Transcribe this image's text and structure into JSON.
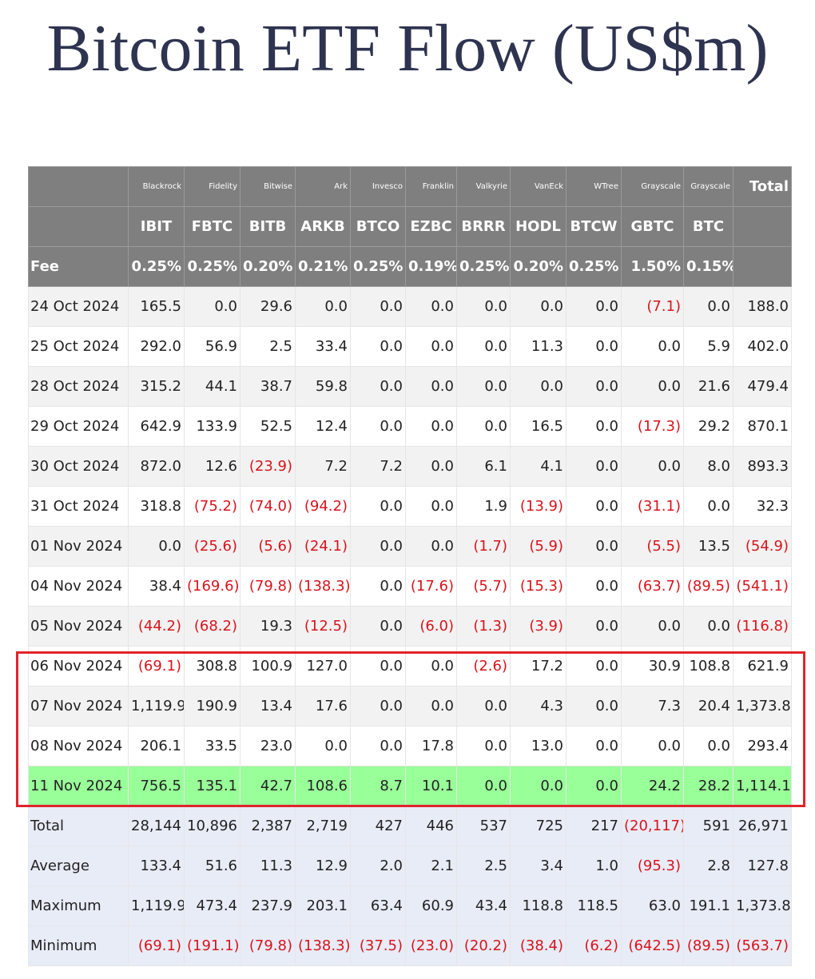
{
  "title": "Bitcoin ETF Flow (US$m)",
  "table": {
    "issuers": [
      "Blackrock",
      "Fidelity",
      "Bitwise",
      "Ark",
      "Invesco",
      "Franklin",
      "Valkyrie",
      "VanEck",
      "WTree",
      "Grayscale",
      "Grayscale"
    ],
    "total_header": "Total",
    "tickers": [
      "IBIT",
      "FBTC",
      "BITB",
      "ARKB",
      "BTCO",
      "EZBC",
      "BRRR",
      "HODL",
      "BTCW",
      "GBTC",
      "BTC"
    ],
    "fee_label": "Fee",
    "fees": [
      "0.25%",
      "0.25%",
      "0.20%",
      "0.21%",
      "0.25%",
      "0.19%",
      "0.25%",
      "0.20%",
      "0.25%",
      "1.50%",
      "0.15%"
    ],
    "rows": [
      [
        "24 Oct 2024",
        "165.5",
        "0.0",
        "29.6",
        "0.0",
        "0.0",
        "0.0",
        "0.0",
        "0.0",
        "0.0",
        "(7.1)",
        "0.0",
        "188.0"
      ],
      [
        "25 Oct 2024",
        "292.0",
        "56.9",
        "2.5",
        "33.4",
        "0.0",
        "0.0",
        "0.0",
        "11.3",
        "0.0",
        "0.0",
        "5.9",
        "402.0"
      ],
      [
        "28 Oct 2024",
        "315.2",
        "44.1",
        "38.7",
        "59.8",
        "0.0",
        "0.0",
        "0.0",
        "0.0",
        "0.0",
        "0.0",
        "21.6",
        "479.4"
      ],
      [
        "29 Oct 2024",
        "642.9",
        "133.9",
        "52.5",
        "12.4",
        "0.0",
        "0.0",
        "0.0",
        "16.5",
        "0.0",
        "(17.3)",
        "29.2",
        "870.1"
      ],
      [
        "30 Oct 2024",
        "872.0",
        "12.6",
        "(23.9)",
        "7.2",
        "7.2",
        "0.0",
        "6.1",
        "4.1",
        "0.0",
        "0.0",
        "8.0",
        "893.3"
      ],
      [
        "31 Oct 2024",
        "318.8",
        "(75.2)",
        "(74.0)",
        "(94.2)",
        "0.0",
        "0.0",
        "1.9",
        "(13.9)",
        "0.0",
        "(31.1)",
        "0.0",
        "32.3"
      ],
      [
        "01 Nov 2024",
        "0.0",
        "(25.6)",
        "(5.6)",
        "(24.1)",
        "0.0",
        "0.0",
        "(1.7)",
        "(5.9)",
        "0.0",
        "(5.5)",
        "13.5",
        "(54.9)"
      ],
      [
        "04 Nov 2024",
        "38.4",
        "(169.6)",
        "(79.8)",
        "(138.3)",
        "0.0",
        "(17.6)",
        "(5.7)",
        "(15.3)",
        "0.0",
        "(63.7)",
        "(89.5)",
        "(541.1)"
      ],
      [
        "05 Nov 2024",
        "(44.2)",
        "(68.2)",
        "19.3",
        "(12.5)",
        "0.0",
        "(6.0)",
        "(1.3)",
        "(3.9)",
        "0.0",
        "0.0",
        "0.0",
        "(116.8)"
      ],
      [
        "06 Nov 2024",
        "(69.1)",
        "308.8",
        "100.9",
        "127.0",
        "0.0",
        "0.0",
        "(2.6)",
        "17.2",
        "0.0",
        "30.9",
        "108.8",
        "621.9"
      ],
      [
        "07 Nov 2024",
        "1,119.9",
        "190.9",
        "13.4",
        "17.6",
        "0.0",
        "0.0",
        "0.0",
        "4.3",
        "0.0",
        "7.3",
        "20.4",
        "1,373.8"
      ],
      [
        "08 Nov 2024",
        "206.1",
        "33.5",
        "23.0",
        "0.0",
        "0.0",
        "17.8",
        "0.0",
        "13.0",
        "0.0",
        "0.0",
        "0.0",
        "293.4"
      ],
      [
        "11 Nov 2024",
        "756.5",
        "135.1",
        "42.7",
        "108.6",
        "8.7",
        "10.1",
        "0.0",
        "0.0",
        "0.0",
        "24.2",
        "28.2",
        "1,114.1"
      ]
    ],
    "summary": [
      [
        "Total",
        "28,144",
        "10,896",
        "2,387",
        "2,719",
        "427",
        "446",
        "537",
        "725",
        "217",
        "(20,117)",
        "591",
        "26,971"
      ],
      [
        "Average",
        "133.4",
        "51.6",
        "11.3",
        "12.9",
        "2.0",
        "2.1",
        "2.5",
        "3.4",
        "1.0",
        "(95.3)",
        "2.8",
        "127.8"
      ],
      [
        "Maximum",
        "1,119.9",
        "473.4",
        "237.9",
        "203.1",
        "63.4",
        "60.9",
        "43.4",
        "118.8",
        "118.5",
        "63.0",
        "191.1",
        "1,373.8"
      ],
      [
        "Minimum",
        "(69.1)",
        "(191.1)",
        "(79.8)",
        "(138.3)",
        "(37.5)",
        "(23.0)",
        "(20.2)",
        "(38.4)",
        "(6.2)",
        "(642.5)",
        "(89.5)",
        "(563.7)"
      ]
    ]
  }
}
